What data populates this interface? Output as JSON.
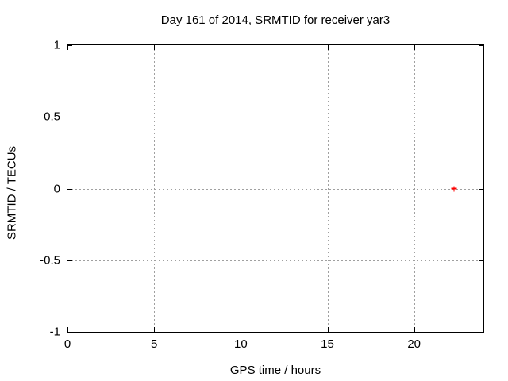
{
  "chart_data": {
    "type": "scatter",
    "title": "Day 161 of 2014, SRMTID for receiver yar3",
    "xlabel": "GPS time / hours",
    "ylabel": "SRMTID / TECUs",
    "xlim": [
      0,
      24
    ],
    "ylim": [
      -1,
      1
    ],
    "xticks": [
      0,
      5,
      10,
      15,
      20
    ],
    "xtick_labels": [
      "0",
      "5",
      "10",
      "15",
      "20"
    ],
    "yticks": [
      -1,
      -0.5,
      0,
      0.5,
      1
    ],
    "ytick_labels": [
      "-1",
      "-0.5",
      "0",
      "0.5",
      "1"
    ],
    "grid": true,
    "legend": "none",
    "series": [
      {
        "name": "SRMTID",
        "marker": "plus",
        "color": "#ff0000",
        "points": [
          {
            "x": 22.3,
            "y": 0.0
          }
        ]
      }
    ],
    "colors": {
      "background": "#ffffff",
      "axis": "#000000",
      "grid": "#a0a0a0",
      "text": "#000000"
    }
  }
}
